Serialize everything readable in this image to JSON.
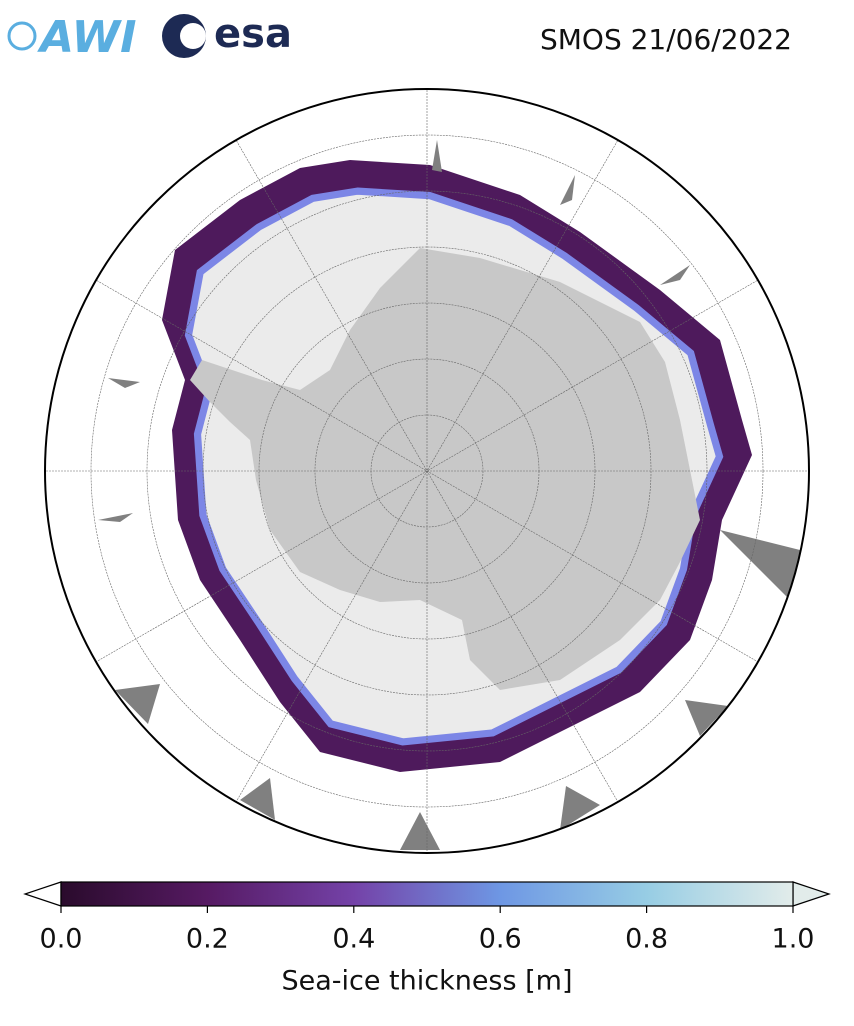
{
  "header": {
    "logos": [
      "AWI",
      "esa"
    ],
    "title": "SMOS 21/06/2022"
  },
  "colorbar": {
    "label": "Sea-ice thickness [m]",
    "lim": [
      0,
      1
    ],
    "ticks": [
      {
        "value": 0,
        "label": "0.0"
      },
      {
        "value": 0.2,
        "label": "0.2"
      },
      {
        "value": 0.4,
        "label": "0.4"
      },
      {
        "value": 0.6,
        "label": "0.6"
      },
      {
        "value": 0.8,
        "label": "0.8"
      },
      {
        "value": 1,
        "label": "1.0"
      }
    ]
  }
}
